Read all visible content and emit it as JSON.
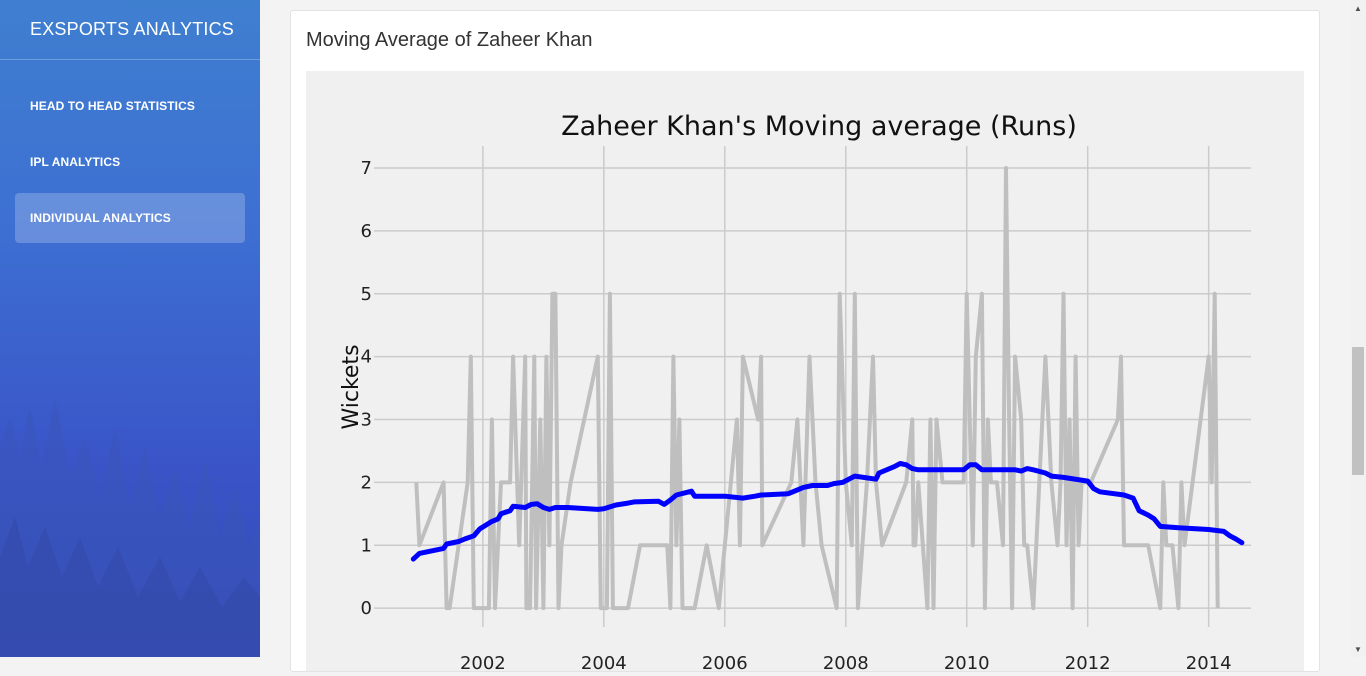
{
  "sidebar": {
    "brand": "EXSPORTS ANALYTICS",
    "items": [
      {
        "label": "HEAD TO HEAD STATISTICS",
        "active": false
      },
      {
        "label": "IPL ANALYTICS",
        "active": false
      },
      {
        "label": "INDIVIDUAL ANALYTICS",
        "active": true
      }
    ]
  },
  "card": {
    "title": "Moving Average of Zaheer Khan"
  },
  "scrollbar": {
    "up_icon": "triangle-up-icon",
    "down_icon": "triangle-down-icon"
  },
  "chart_data": {
    "type": "line",
    "title": "Zaheer Khan's Moving average (Runs)",
    "xlabel": "",
    "ylabel": "Wickets",
    "xlim": [
      2000.2,
      2014.7
    ],
    "ylim": [
      -0.3,
      7.35
    ],
    "xticks": [
      2002,
      2004,
      2006,
      2008,
      2010,
      2012,
      2014
    ],
    "yticks": [
      0,
      1,
      2,
      3,
      4,
      5,
      6,
      7
    ],
    "grid": true,
    "colors": {
      "raw": "#bfbfbf",
      "moving_average": "#0000ff",
      "background": "#f0f0f0",
      "grid": "#cbcbcb"
    },
    "series": [
      {
        "role": "raw",
        "points": [
          [
            2000.9,
            2
          ],
          [
            2000.95,
            1
          ],
          [
            2001.35,
            2
          ],
          [
            2001.4,
            0
          ],
          [
            2001.45,
            0
          ],
          [
            2001.75,
            2
          ],
          [
            2001.8,
            4
          ],
          [
            2001.85,
            0
          ],
          [
            2002.1,
            0
          ],
          [
            2002.15,
            3
          ],
          [
            2002.2,
            0
          ],
          [
            2002.3,
            2
          ],
          [
            2002.45,
            2
          ],
          [
            2002.5,
            4
          ],
          [
            2002.6,
            1
          ],
          [
            2002.7,
            4
          ],
          [
            2002.72,
            0
          ],
          [
            2002.78,
            0
          ],
          [
            2002.85,
            4
          ],
          [
            2002.88,
            0
          ],
          [
            2002.95,
            3
          ],
          [
            2003.0,
            0
          ],
          [
            2003.05,
            4
          ],
          [
            2003.1,
            1
          ],
          [
            2003.15,
            5
          ],
          [
            2003.2,
            5
          ],
          [
            2003.25,
            0
          ],
          [
            2003.3,
            1
          ],
          [
            2003.45,
            2
          ],
          [
            2003.9,
            4
          ],
          [
            2003.95,
            0
          ],
          [
            2004.05,
            0
          ],
          [
            2004.1,
            5
          ],
          [
            2004.15,
            0
          ],
          [
            2004.4,
            0
          ],
          [
            2004.6,
            1
          ],
          [
            2005.05,
            1
          ],
          [
            2005.1,
            0
          ],
          [
            2005.15,
            4
          ],
          [
            2005.2,
            1
          ],
          [
            2005.25,
            3
          ],
          [
            2005.3,
            0
          ],
          [
            2005.5,
            0
          ],
          [
            2005.7,
            1
          ],
          [
            2005.9,
            0
          ],
          [
            2006.2,
            3
          ],
          [
            2006.25,
            1
          ],
          [
            2006.3,
            4
          ],
          [
            2006.55,
            3
          ],
          [
            2006.6,
            4
          ],
          [
            2006.62,
            1
          ],
          [
            2007.1,
            2
          ],
          [
            2007.2,
            3
          ],
          [
            2007.3,
            1
          ],
          [
            2007.4,
            4
          ],
          [
            2007.5,
            2
          ],
          [
            2007.6,
            1
          ],
          [
            2007.85,
            0
          ],
          [
            2007.9,
            5
          ],
          [
            2008.0,
            2
          ],
          [
            2008.1,
            1
          ],
          [
            2008.15,
            5
          ],
          [
            2008.2,
            0
          ],
          [
            2008.35,
            2
          ],
          [
            2008.45,
            4
          ],
          [
            2008.5,
            2
          ],
          [
            2008.6,
            1
          ],
          [
            2009.0,
            2
          ],
          [
            2009.1,
            3
          ],
          [
            2009.12,
            1
          ],
          [
            2009.15,
            1
          ],
          [
            2009.2,
            2
          ],
          [
            2009.35,
            0
          ],
          [
            2009.4,
            3
          ],
          [
            2009.45,
            0
          ],
          [
            2009.5,
            3
          ],
          [
            2009.6,
            2
          ],
          [
            2009.95,
            2
          ],
          [
            2010.0,
            5
          ],
          [
            2010.1,
            1
          ],
          [
            2010.15,
            4
          ],
          [
            2010.25,
            5
          ],
          [
            2010.3,
            0
          ],
          [
            2010.35,
            3
          ],
          [
            2010.4,
            2
          ],
          [
            2010.5,
            2
          ],
          [
            2010.6,
            1
          ],
          [
            2010.65,
            7
          ],
          [
            2010.7,
            3
          ],
          [
            2010.75,
            0
          ],
          [
            2010.8,
            4
          ],
          [
            2010.9,
            3
          ],
          [
            2010.95,
            1
          ],
          [
            2011.0,
            1
          ],
          [
            2011.1,
            0
          ],
          [
            2011.2,
            2
          ],
          [
            2011.3,
            4
          ],
          [
            2011.4,
            2
          ],
          [
            2011.5,
            1
          ],
          [
            2011.55,
            2
          ],
          [
            2011.6,
            5
          ],
          [
            2011.65,
            1
          ],
          [
            2011.7,
            3
          ],
          [
            2011.75,
            0
          ],
          [
            2011.8,
            4
          ],
          [
            2011.85,
            1
          ],
          [
            2011.9,
            2
          ],
          [
            2012.05,
            2
          ],
          [
            2012.5,
            3
          ],
          [
            2012.55,
            4
          ],
          [
            2012.6,
            1
          ],
          [
            2013.0,
            1
          ],
          [
            2013.2,
            0
          ],
          [
            2013.25,
            2
          ],
          [
            2013.3,
            1
          ],
          [
            2013.4,
            1
          ],
          [
            2013.5,
            0
          ],
          [
            2013.55,
            2
          ],
          [
            2013.6,
            1
          ],
          [
            2014.0,
            4
          ],
          [
            2014.05,
            2
          ],
          [
            2014.1,
            5
          ],
          [
            2014.15,
            0
          ]
        ]
      },
      {
        "role": "moving_average",
        "points": [
          [
            2000.85,
            0.78
          ],
          [
            2000.95,
            0.87
          ],
          [
            2001.35,
            0.95
          ],
          [
            2001.4,
            1.02
          ],
          [
            2001.6,
            1.06
          ],
          [
            2001.7,
            1.1
          ],
          [
            2001.85,
            1.15
          ],
          [
            2001.95,
            1.26
          ],
          [
            2002.05,
            1.32
          ],
          [
            2002.15,
            1.38
          ],
          [
            2002.25,
            1.42
          ],
          [
            2002.3,
            1.5
          ],
          [
            2002.45,
            1.55
          ],
          [
            2002.5,
            1.62
          ],
          [
            2002.7,
            1.6
          ],
          [
            2002.8,
            1.65
          ],
          [
            2002.9,
            1.66
          ],
          [
            2003.0,
            1.6
          ],
          [
            2003.1,
            1.57
          ],
          [
            2003.2,
            1.6
          ],
          [
            2003.4,
            1.6
          ],
          [
            2003.9,
            1.57
          ],
          [
            2004.0,
            1.58
          ],
          [
            2004.2,
            1.64
          ],
          [
            2004.4,
            1.67
          ],
          [
            2004.5,
            1.69
          ],
          [
            2004.9,
            1.7
          ],
          [
            2005.0,
            1.65
          ],
          [
            2005.1,
            1.72
          ],
          [
            2005.2,
            1.8
          ],
          [
            2005.45,
            1.86
          ],
          [
            2005.5,
            1.78
          ],
          [
            2006.0,
            1.78
          ],
          [
            2006.3,
            1.75
          ],
          [
            2006.5,
            1.78
          ],
          [
            2006.6,
            1.8
          ],
          [
            2007.05,
            1.82
          ],
          [
            2007.2,
            1.88
          ],
          [
            2007.3,
            1.92
          ],
          [
            2007.45,
            1.95
          ],
          [
            2007.7,
            1.95
          ],
          [
            2007.8,
            1.98
          ],
          [
            2007.95,
            2.0
          ],
          [
            2008.05,
            2.05
          ],
          [
            2008.15,
            2.1
          ],
          [
            2008.5,
            2.05
          ],
          [
            2008.55,
            2.15
          ],
          [
            2008.8,
            2.25
          ],
          [
            2008.9,
            2.3
          ],
          [
            2009.0,
            2.28
          ],
          [
            2009.1,
            2.22
          ],
          [
            2009.2,
            2.2
          ],
          [
            2009.6,
            2.2
          ],
          [
            2009.95,
            2.2
          ],
          [
            2010.05,
            2.28
          ],
          [
            2010.15,
            2.28
          ],
          [
            2010.25,
            2.2
          ],
          [
            2010.6,
            2.2
          ],
          [
            2010.8,
            2.2
          ],
          [
            2010.9,
            2.18
          ],
          [
            2011.0,
            2.22
          ],
          [
            2011.1,
            2.2
          ],
          [
            2011.3,
            2.15
          ],
          [
            2011.4,
            2.1
          ],
          [
            2011.6,
            2.08
          ],
          [
            2012.0,
            2.02
          ],
          [
            2012.1,
            1.9
          ],
          [
            2012.2,
            1.85
          ],
          [
            2012.6,
            1.8
          ],
          [
            2012.75,
            1.75
          ],
          [
            2012.85,
            1.55
          ],
          [
            2013.0,
            1.48
          ],
          [
            2013.1,
            1.42
          ],
          [
            2013.2,
            1.3
          ],
          [
            2013.5,
            1.28
          ],
          [
            2014.0,
            1.25
          ],
          [
            2014.25,
            1.22
          ],
          [
            2014.35,
            1.15
          ],
          [
            2014.45,
            1.1
          ],
          [
            2014.55,
            1.04
          ]
        ]
      }
    ]
  }
}
